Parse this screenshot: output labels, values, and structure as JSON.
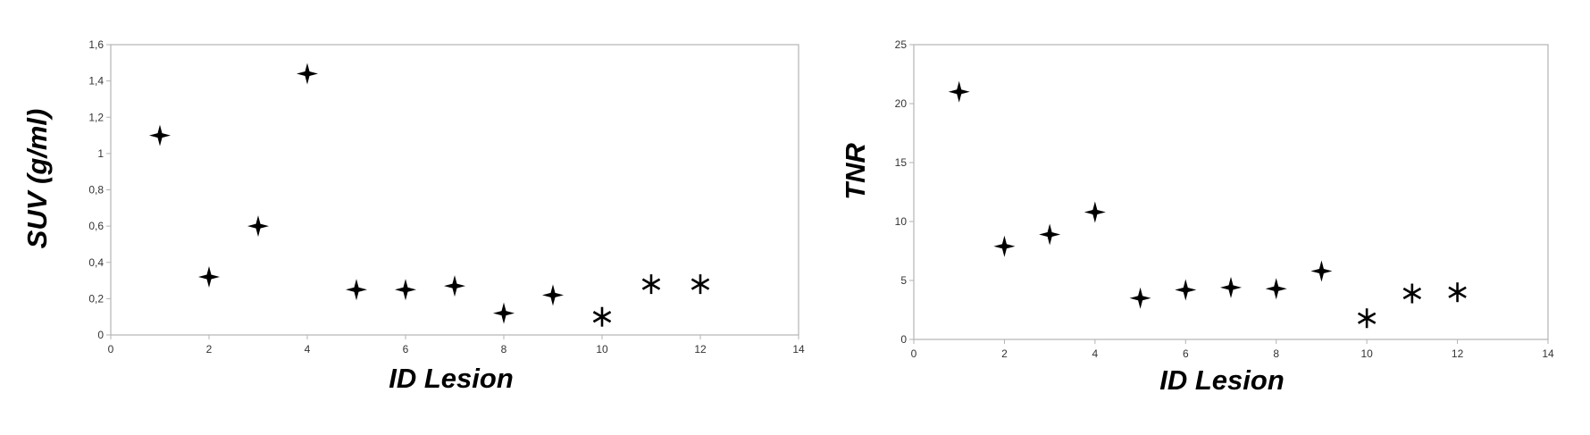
{
  "chart_data": [
    {
      "type": "scatter",
      "xlabel": "ID Lesion",
      "ylabel": "SUV (g/ml)",
      "xlim": [
        0,
        14
      ],
      "ylim": [
        0,
        1.6
      ],
      "xticks": [
        "0",
        "2",
        "4",
        "6",
        "8",
        "10",
        "12",
        "14"
      ],
      "yticks": [
        "0",
        "0,2",
        "0,4",
        "0,6",
        "0,8",
        "1",
        "1,2",
        "1,4",
        "1,6"
      ],
      "grid": false,
      "marker_color": "#000000",
      "points": [
        {
          "x": 1,
          "y": 1.1,
          "marker": "star4"
        },
        {
          "x": 2,
          "y": 0.32,
          "marker": "star4"
        },
        {
          "x": 3,
          "y": 0.6,
          "marker": "star4"
        },
        {
          "x": 4,
          "y": 1.44,
          "marker": "star4"
        },
        {
          "x": 5,
          "y": 0.25,
          "marker": "star4"
        },
        {
          "x": 6,
          "y": 0.25,
          "marker": "star4"
        },
        {
          "x": 7,
          "y": 0.27,
          "marker": "star4"
        },
        {
          "x": 8,
          "y": 0.12,
          "marker": "star4"
        },
        {
          "x": 9,
          "y": 0.22,
          "marker": "star4"
        },
        {
          "x": 10,
          "y": 0.1,
          "marker": "asterisk"
        },
        {
          "x": 11,
          "y": 0.28,
          "marker": "asterisk"
        },
        {
          "x": 12,
          "y": 0.28,
          "marker": "asterisk"
        }
      ]
    },
    {
      "type": "scatter",
      "xlabel": "ID Lesion",
      "ylabel": "TNR",
      "xlim": [
        0,
        14
      ],
      "ylim": [
        0,
        25
      ],
      "xticks": [
        "0",
        "2",
        "4",
        "6",
        "8",
        "10",
        "12",
        "14"
      ],
      "yticks": [
        "0",
        "5",
        "10",
        "15",
        "20",
        "25"
      ],
      "grid": false,
      "marker_color": "#000000",
      "points": [
        {
          "x": 1,
          "y": 21.0,
          "marker": "star4"
        },
        {
          "x": 2,
          "y": 7.9,
          "marker": "star4"
        },
        {
          "x": 3,
          "y": 8.9,
          "marker": "star4"
        },
        {
          "x": 4,
          "y": 10.8,
          "marker": "star4"
        },
        {
          "x": 5,
          "y": 3.5,
          "marker": "star4"
        },
        {
          "x": 6,
          "y": 4.2,
          "marker": "star4"
        },
        {
          "x": 7,
          "y": 4.4,
          "marker": "star4"
        },
        {
          "x": 8,
          "y": 4.3,
          "marker": "star4"
        },
        {
          "x": 9,
          "y": 5.8,
          "marker": "star4"
        },
        {
          "x": 10,
          "y": 1.8,
          "marker": "asterisk"
        },
        {
          "x": 11,
          "y": 3.9,
          "marker": "asterisk"
        },
        {
          "x": 12,
          "y": 4.0,
          "marker": "asterisk"
        }
      ]
    }
  ]
}
